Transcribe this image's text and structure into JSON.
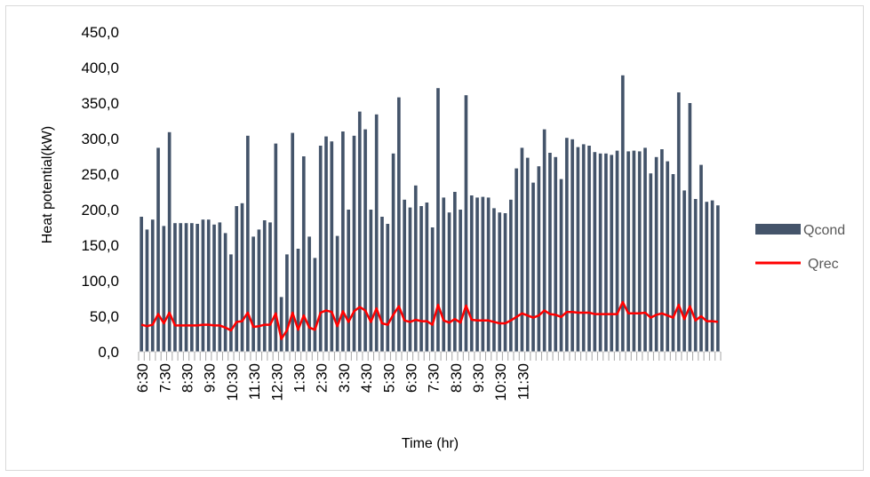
{
  "chart_data": {
    "type": "bar",
    "xlabel": "Time (hr)",
    "ylabel": "Heat potential(kW)",
    "ylim": [
      0,
      450
    ],
    "y_ticks": [
      "0,0",
      "50,0",
      "100,0",
      "150,0",
      "200,0",
      "250,0",
      "300,0",
      "350,0",
      "400,0",
      "450,0"
    ],
    "x_tick_labels": [
      "6:30",
      "7:30",
      "8:30",
      "9:30",
      "10:30",
      "11:30",
      "12:30",
      "1:30",
      "2:30",
      "3:30",
      "4:30",
      "5:30",
      "6:30",
      "7:30",
      "8:30",
      "9:30",
      "10:30",
      "11:30"
    ],
    "label_every": 4,
    "grid": false,
    "legend_position": "right",
    "colors": {
      "bar": "#44546a",
      "line": "#ff0000",
      "tick": "#a6a6a6"
    },
    "series": [
      {
        "name": "Qcond",
        "kind": "bar",
        "values": [
          190,
          172,
          186,
          287,
          177,
          309,
          181,
          181,
          181,
          181,
          180,
          186,
          186,
          179,
          182,
          167,
          137,
          205,
          209,
          304,
          162,
          172,
          185,
          182,
          293,
          77,
          137,
          308,
          145,
          275,
          162,
          132,
          290,
          303,
          296,
          163,
          310,
          200,
          304,
          338,
          313,
          200,
          334,
          190,
          180,
          279,
          358,
          214,
          203,
          234,
          205,
          210,
          175,
          371,
          217,
          196,
          225,
          200,
          361,
          220,
          217,
          218,
          217,
          202,
          196,
          195,
          214,
          258,
          287,
          273,
          238,
          261,
          313,
          280,
          274,
          243,
          301,
          299,
          288,
          292,
          290,
          281,
          279,
          279,
          277,
          283,
          389,
          282,
          283,
          282,
          287,
          251,
          274,
          285,
          268,
          250,
          365,
          227,
          350,
          215,
          263,
          211,
          213,
          206
        ]
      },
      {
        "name": "Qrec",
        "kind": "line",
        "values": [
          38,
          36,
          38,
          53,
          40,
          55,
          37,
          37,
          37,
          37,
          37,
          38,
          38,
          37,
          37,
          34,
          30,
          42,
          43,
          55,
          35,
          36,
          38,
          38,
          54,
          18,
          30,
          55,
          31,
          51,
          34,
          31,
          55,
          58,
          56,
          36,
          57,
          42,
          57,
          63,
          58,
          42,
          61,
          40,
          38,
          52,
          64,
          44,
          42,
          45,
          43,
          43,
          38,
          66,
          44,
          41,
          46,
          41,
          65,
          45,
          44,
          44,
          44,
          42,
          40,
          40,
          44,
          49,
          54,
          51,
          48,
          51,
          58,
          53,
          52,
          49,
          56,
          56,
          55,
          55,
          55,
          53,
          53,
          53,
          53,
          53,
          70,
          54,
          54,
          54,
          55,
          48,
          52,
          54,
          51,
          48,
          66,
          46,
          64,
          44,
          50,
          43,
          43,
          42
        ]
      }
    ]
  }
}
